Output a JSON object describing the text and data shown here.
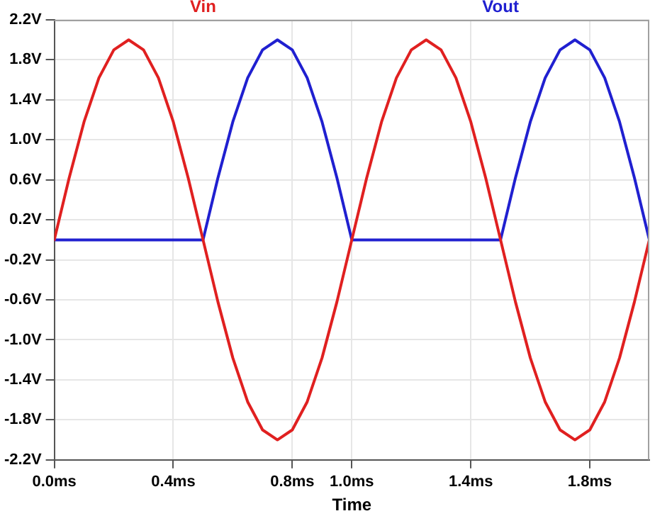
{
  "chart_data": {
    "type": "line",
    "xlabel": "Time",
    "x": [
      0,
      0.05,
      0.1,
      0.15,
      0.2,
      0.25,
      0.3,
      0.35,
      0.4,
      0.45,
      0.5,
      0.55,
      0.6,
      0.65,
      0.7,
      0.75,
      0.8,
      0.85,
      0.9,
      0.95,
      1,
      1.05,
      1.1,
      1.15,
      1.2,
      1.25,
      1.3,
      1.35,
      1.4,
      1.45,
      1.5,
      1.55,
      1.6,
      1.65,
      1.7,
      1.75,
      1.8,
      1.85,
      1.9,
      1.95,
      2
    ],
    "series": [
      {
        "name": "Vin",
        "color": "#e02020",
        "values": [
          0,
          0.62,
          1.18,
          1.62,
          1.9,
          2,
          1.9,
          1.62,
          1.18,
          0.62,
          0,
          -0.62,
          -1.18,
          -1.62,
          -1.9,
          -2,
          -1.9,
          -1.62,
          -1.18,
          -0.62,
          0,
          0.62,
          1.18,
          1.62,
          1.9,
          2,
          1.9,
          1.62,
          1.18,
          0.62,
          0,
          -0.62,
          -1.18,
          -1.62,
          -1.9,
          -2,
          -1.9,
          -1.62,
          -1.18,
          -0.62,
          0
        ]
      },
      {
        "name": "Vout",
        "color": "#2020d0",
        "values": [
          0,
          0,
          0,
          0,
          0,
          0,
          0,
          0,
          0,
          0,
          0,
          0.62,
          1.18,
          1.62,
          1.9,
          2,
          1.9,
          1.62,
          1.18,
          0.62,
          0,
          0,
          0,
          0,
          0,
          0,
          0,
          0,
          0,
          0,
          0,
          0.62,
          1.18,
          1.62,
          1.9,
          2,
          1.9,
          1.62,
          1.18,
          0.62,
          0
        ]
      }
    ],
    "xlim": [
      0,
      2
    ],
    "xticks": [
      {
        "value": 0,
        "label": "0.0ms"
      },
      {
        "value": 0.4,
        "label": "0.4ms"
      },
      {
        "value": 0.8,
        "label": "0.8ms"
      },
      {
        "value": 1,
        "label": "1.0ms"
      },
      {
        "value": 1.4,
        "label": "1.4ms"
      },
      {
        "value": 1.8,
        "label": "1.8ms"
      }
    ],
    "ylim": [
      -2.2,
      2.2
    ],
    "yticks": [
      {
        "value": 2.2,
        "label": "2.2V"
      },
      {
        "value": 1.8,
        "label": "1.8V"
      },
      {
        "value": 1.4,
        "label": "1.4V"
      },
      {
        "value": 1,
        "label": "1.0V"
      },
      {
        "value": 0.6,
        "label": "0.6V"
      },
      {
        "value": 0.2,
        "label": "0.2V"
      },
      {
        "value": -0.2,
        "label": "-0.2V"
      },
      {
        "value": -0.6,
        "label": "-0.6V"
      },
      {
        "value": -1,
        "label": "-1.0V"
      },
      {
        "value": -1.4,
        "label": "-1.4V"
      },
      {
        "value": -1.8,
        "label": "-1.8V"
      },
      {
        "value": -2.2,
        "label": "-2.2V"
      }
    ],
    "grid": true,
    "legend": "top",
    "marker": "none",
    "line_style": "solid"
  }
}
